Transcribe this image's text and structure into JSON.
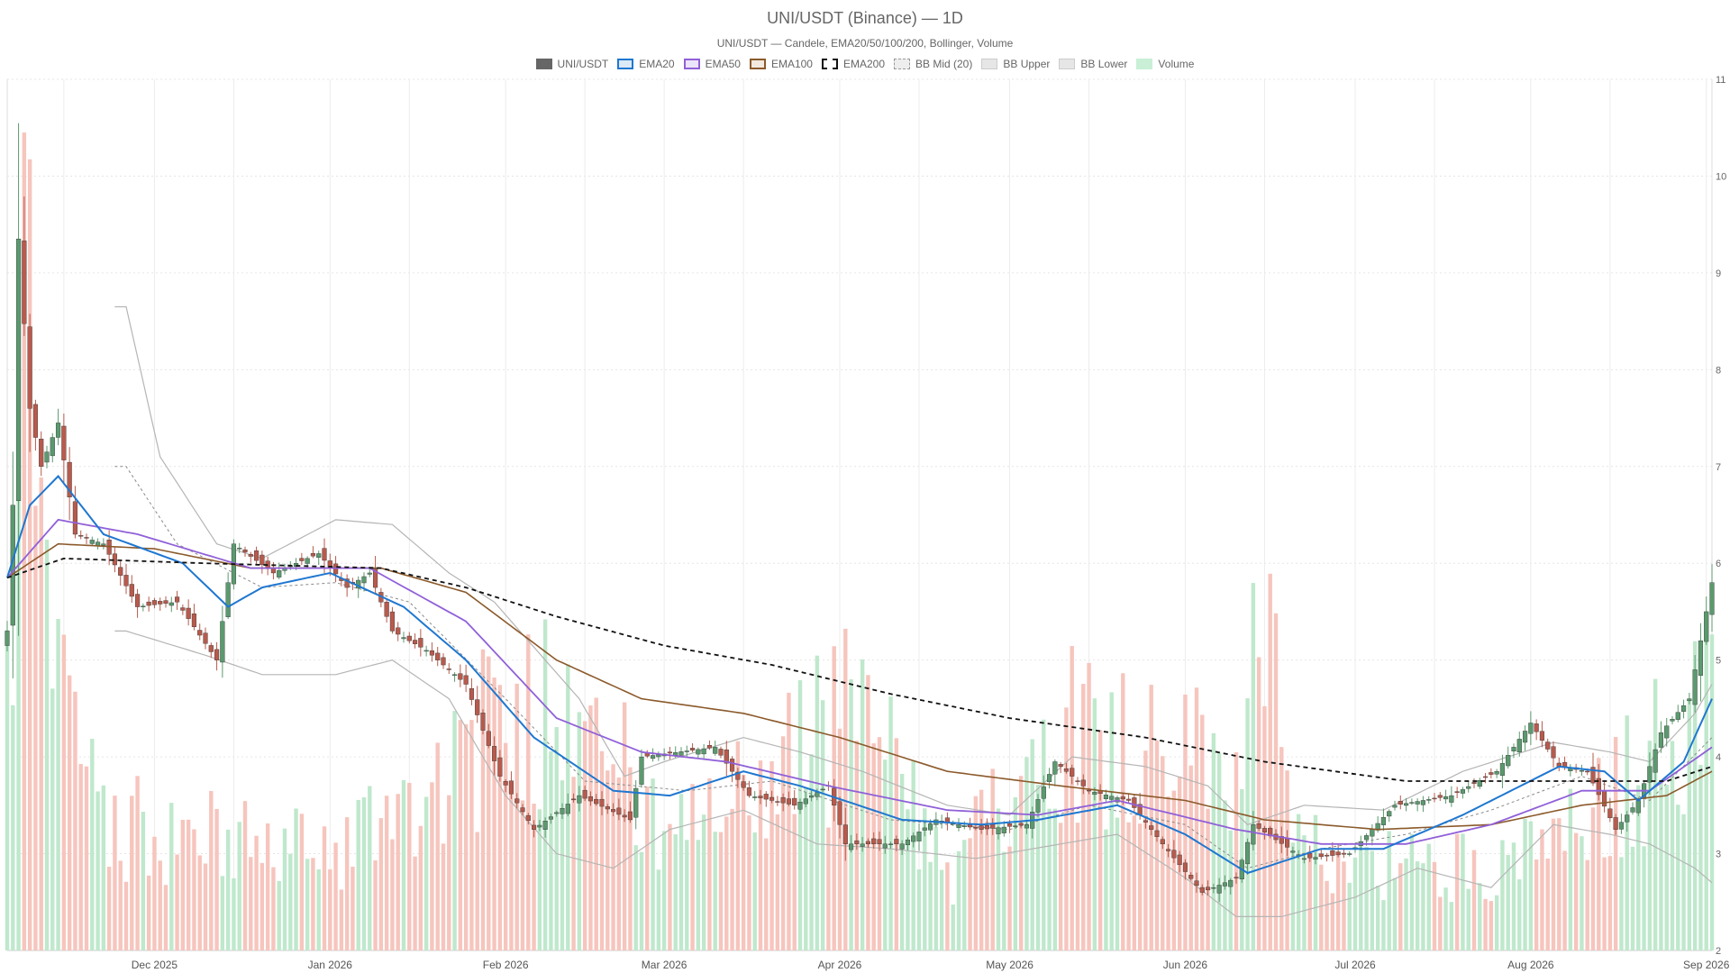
{
  "chart_data": {
    "type": "candlestick",
    "title": "UNI/USDT (Binance) — 1D",
    "subtitle": "UNI/USDT — Candele, EMA20/50/100/200, Bollinger, Volume",
    "xlabel": "",
    "ylabel": "",
    "ylim": [
      2,
      11
    ],
    "y_ticks": [
      2,
      3,
      4,
      5,
      6,
      7,
      8,
      9,
      10,
      11
    ],
    "x_ticks": [
      "Dec 2025",
      "Jan 2026",
      "Feb 2026",
      "Mar 2026",
      "Apr 2026",
      "May 2026",
      "Jun 2026",
      "Jul 2026",
      "Aug 2026",
      "Sep 2026"
    ],
    "x_range": [
      "2025-11-05",
      "2026-09-02"
    ],
    "grid": true,
    "legend_position": "top-center",
    "colors": {
      "up": "#5a9a6e",
      "down": "#b85a4c",
      "volume_up": "#bfe8cc",
      "volume_down": "#f6c5bd",
      "ema20": "#1f77d0",
      "ema50": "#9060d8",
      "ema100": "#8b5a2b",
      "ema200": "#111111",
      "bollinger": "#b5b5b5"
    },
    "legend": [
      {
        "name": "UNI/USDT",
        "icon": "candle-swatch"
      },
      {
        "name": "EMA20",
        "icon": "ema20-swatch"
      },
      {
        "name": "EMA50",
        "icon": "ema50-swatch"
      },
      {
        "name": "EMA100",
        "icon": "ema100-swatch"
      },
      {
        "name": "EMA200",
        "icon": "ema200-swatch"
      },
      {
        "name": "BB Mid (20)",
        "icon": "bb-mid-swatch"
      },
      {
        "name": "BB Upper",
        "icon": "bb-upper-swatch"
      },
      {
        "name": "BB Lower",
        "icon": "bb-lower-swatch"
      },
      {
        "name": "Volume",
        "icon": "volume-swatch"
      }
    ],
    "price_keypoints": [
      [
        "2025-11-05",
        5.3
      ],
      [
        "2025-11-06",
        6.6
      ],
      [
        "2025-11-07",
        9.35
      ],
      [
        "2025-11-09",
        7.6
      ],
      [
        "2025-11-11",
        7.0
      ],
      [
        "2025-11-14",
        7.45
      ],
      [
        "2025-11-17",
        6.3
      ],
      [
        "2025-11-22",
        6.2
      ],
      [
        "2025-11-28",
        5.55
      ],
      [
        "2025-12-05",
        5.6
      ],
      [
        "2025-12-12",
        5.0
      ],
      [
        "2025-12-15",
        6.2
      ],
      [
        "2025-12-22",
        5.9
      ],
      [
        "2025-12-30",
        6.1
      ],
      [
        "2026-01-04",
        5.75
      ],
      [
        "2026-01-08",
        5.9
      ],
      [
        "2026-01-12",
        5.3
      ],
      [
        "2026-01-18",
        5.1
      ],
      [
        "2026-01-25",
        4.75
      ],
      [
        "2026-01-31",
        3.8
      ],
      [
        "2026-02-06",
        3.25
      ],
      [
        "2026-02-14",
        3.6
      ],
      [
        "2026-02-23",
        3.35
      ],
      [
        "2026-02-25",
        4.0
      ],
      [
        "2026-03-10",
        4.1
      ],
      [
        "2026-03-16",
        3.6
      ],
      [
        "2026-03-24",
        3.5
      ],
      [
        "2026-03-30",
        3.7
      ],
      [
        "2026-04-02",
        3.1
      ],
      [
        "2026-04-12",
        3.1
      ],
      [
        "2026-04-18",
        3.35
      ],
      [
        "2026-04-26",
        3.25
      ],
      [
        "2026-05-04",
        3.3
      ],
      [
        "2026-05-09",
        3.95
      ],
      [
        "2026-05-15",
        3.65
      ],
      [
        "2026-05-22",
        3.55
      ],
      [
        "2026-05-28",
        3.1
      ],
      [
        "2026-06-04",
        2.6
      ],
      [
        "2026-06-10",
        2.75
      ],
      [
        "2026-06-13",
        3.3
      ],
      [
        "2026-06-22",
        2.95
      ],
      [
        "2026-06-30",
        3.0
      ],
      [
        "2026-07-08",
        3.5
      ],
      [
        "2026-07-18",
        3.6
      ],
      [
        "2026-07-26",
        3.85
      ],
      [
        "2026-08-01",
        4.35
      ],
      [
        "2026-08-06",
        3.9
      ],
      [
        "2026-08-11",
        3.85
      ],
      [
        "2026-08-16",
        3.25
      ],
      [
        "2026-08-20",
        3.55
      ],
      [
        "2026-08-24",
        4.25
      ],
      [
        "2026-08-29",
        4.6
      ],
      [
        "2026-09-02",
        5.8
      ]
    ],
    "ema20_keypoints": [
      [
        "2025-11-05",
        5.85
      ],
      [
        "2025-11-09",
        6.6
      ],
      [
        "2025-11-14",
        6.9
      ],
      [
        "2025-11-22",
        6.3
      ],
      [
        "2025-12-06",
        6.0
      ],
      [
        "2025-12-14",
        5.55
      ],
      [
        "2025-12-20",
        5.75
      ],
      [
        "2026-01-01",
        5.9
      ],
      [
        "2026-01-14",
        5.55
      ],
      [
        "2026-01-25",
        5.0
      ],
      [
        "2026-02-06",
        4.2
      ],
      [
        "2026-02-20",
        3.65
      ],
      [
        "2026-03-02",
        3.6
      ],
      [
        "2026-03-15",
        3.85
      ],
      [
        "2026-03-25",
        3.7
      ],
      [
        "2026-04-12",
        3.35
      ],
      [
        "2026-04-26",
        3.3
      ],
      [
        "2026-05-06",
        3.35
      ],
      [
        "2026-05-20",
        3.5
      ],
      [
        "2026-06-01",
        3.2
      ],
      [
        "2026-06-12",
        2.8
      ],
      [
        "2026-06-25",
        3.05
      ],
      [
        "2026-07-06",
        3.05
      ],
      [
        "2026-07-20",
        3.4
      ],
      [
        "2026-08-06",
        3.9
      ],
      [
        "2026-08-14",
        3.85
      ],
      [
        "2026-08-20",
        3.55
      ],
      [
        "2026-08-28",
        3.95
      ],
      [
        "2026-09-02",
        4.6
      ]
    ],
    "ema50_keypoints": [
      [
        "2025-11-05",
        5.85
      ],
      [
        "2025-11-14",
        6.45
      ],
      [
        "2025-11-28",
        6.3
      ],
      [
        "2025-12-18",
        5.95
      ],
      [
        "2026-01-08",
        5.95
      ],
      [
        "2026-01-25",
        5.4
      ],
      [
        "2026-02-10",
        4.4
      ],
      [
        "2026-02-25",
        4.05
      ],
      [
        "2026-03-12",
        3.95
      ],
      [
        "2026-03-30",
        3.7
      ],
      [
        "2026-04-20",
        3.45
      ],
      [
        "2026-05-06",
        3.4
      ],
      [
        "2026-05-20",
        3.55
      ],
      [
        "2026-06-10",
        3.25
      ],
      [
        "2026-06-25",
        3.1
      ],
      [
        "2026-07-10",
        3.1
      ],
      [
        "2026-07-25",
        3.3
      ],
      [
        "2026-08-10",
        3.65
      ],
      [
        "2026-08-22",
        3.65
      ],
      [
        "2026-09-02",
        4.1
      ]
    ],
    "ema100_keypoints": [
      [
        "2025-11-05",
        5.85
      ],
      [
        "2025-11-14",
        6.2
      ],
      [
        "2025-12-01",
        6.15
      ],
      [
        "2025-12-18",
        5.95
      ],
      [
        "2026-01-10",
        5.95
      ],
      [
        "2026-01-25",
        5.7
      ],
      [
        "2026-02-10",
        5.0
      ],
      [
        "2026-02-25",
        4.6
      ],
      [
        "2026-03-15",
        4.45
      ],
      [
        "2026-04-01",
        4.2
      ],
      [
        "2026-04-20",
        3.85
      ],
      [
        "2026-05-10",
        3.7
      ],
      [
        "2026-06-01",
        3.55
      ],
      [
        "2026-06-15",
        3.35
      ],
      [
        "2026-07-05",
        3.25
      ],
      [
        "2026-07-25",
        3.3
      ],
      [
        "2026-08-10",
        3.5
      ],
      [
        "2026-08-25",
        3.6
      ],
      [
        "2026-09-02",
        3.85
      ]
    ],
    "ema200_keypoints": [
      [
        "2025-11-05",
        5.85
      ],
      [
        "2025-11-15",
        6.05
      ],
      [
        "2025-12-10",
        6.0
      ],
      [
        "2026-01-10",
        5.95
      ],
      [
        "2026-01-25",
        5.75
      ],
      [
        "2026-02-10",
        5.45
      ],
      [
        "2026-03-01",
        5.15
      ],
      [
        "2026-03-20",
        4.95
      ],
      [
        "2026-04-10",
        4.65
      ],
      [
        "2026-05-01",
        4.4
      ],
      [
        "2026-05-25",
        4.2
      ],
      [
        "2026-06-15",
        3.95
      ],
      [
        "2026-07-10",
        3.75
      ],
      [
        "2026-08-05",
        3.75
      ],
      [
        "2026-08-25",
        3.75
      ],
      [
        "2026-09-02",
        3.9
      ]
    ],
    "bb_upper_keypoints": [
      [
        "2025-11-24",
        8.65
      ],
      [
        "2025-11-26",
        8.65
      ],
      [
        "2025-12-02",
        7.1
      ],
      [
        "2025-12-12",
        6.2
      ],
      [
        "2025-12-20",
        6.05
      ],
      [
        "2026-01-02",
        6.45
      ],
      [
        "2026-01-12",
        6.4
      ],
      [
        "2026-01-22",
        5.9
      ],
      [
        "2026-01-30",
        5.6
      ],
      [
        "2026-02-08",
        5.0
      ],
      [
        "2026-02-14",
        4.6
      ],
      [
        "2026-02-22",
        3.8
      ],
      [
        "2026-03-01",
        3.95
      ],
      [
        "2026-03-15",
        4.2
      ],
      [
        "2026-03-25",
        4.05
      ],
      [
        "2026-04-05",
        3.85
      ],
      [
        "2026-04-20",
        3.5
      ],
      [
        "2026-05-01",
        3.4
      ],
      [
        "2026-05-12",
        4.0
      ],
      [
        "2026-05-25",
        3.9
      ],
      [
        "2026-06-05",
        3.7
      ],
      [
        "2026-06-12",
        3.3
      ],
      [
        "2026-06-22",
        3.5
      ],
      [
        "2026-07-06",
        3.45
      ],
      [
        "2026-07-20",
        3.85
      ],
      [
        "2026-08-05",
        4.15
      ],
      [
        "2026-08-15",
        4.05
      ],
      [
        "2026-08-22",
        3.95
      ],
      [
        "2026-08-30",
        4.45
      ],
      [
        "2026-09-02",
        4.75
      ]
    ],
    "bb_lower_keypoints": [
      [
        "2025-11-24",
        5.3
      ],
      [
        "2025-11-26",
        5.3
      ],
      [
        "2025-12-10",
        5.05
      ],
      [
        "2025-12-20",
        4.85
      ],
      [
        "2026-01-02",
        4.85
      ],
      [
        "2026-01-12",
        5.0
      ],
      [
        "2026-01-22",
        4.6
      ],
      [
        "2026-02-01",
        3.6
      ],
      [
        "2026-02-10",
        3.0
      ],
      [
        "2026-02-20",
        2.85
      ],
      [
        "2026-03-02",
        3.25
      ],
      [
        "2026-03-15",
        3.45
      ],
      [
        "2026-03-28",
        3.1
      ],
      [
        "2026-04-10",
        3.05
      ],
      [
        "2026-04-25",
        2.95
      ],
      [
        "2026-05-05",
        3.05
      ],
      [
        "2026-05-20",
        3.2
      ],
      [
        "2026-06-01",
        2.75
      ],
      [
        "2026-06-10",
        2.35
      ],
      [
        "2026-06-18",
        2.35
      ],
      [
        "2026-07-01",
        2.55
      ],
      [
        "2026-07-12",
        2.85
      ],
      [
        "2026-07-25",
        2.65
      ],
      [
        "2026-08-05",
        3.3
      ],
      [
        "2026-08-15",
        3.2
      ],
      [
        "2026-08-22",
        3.1
      ],
      [
        "2026-08-30",
        2.85
      ],
      [
        "2026-09-02",
        2.7
      ]
    ],
    "bb_mid_keypoints": [
      [
        "2025-11-24",
        7.0
      ],
      [
        "2025-11-26",
        7.0
      ],
      [
        "2025-12-05",
        6.2
      ],
      [
        "2025-12-20",
        5.75
      ],
      [
        "2026-01-02",
        5.8
      ],
      [
        "2026-01-15",
        5.6
      ],
      [
        "2026-02-01",
        4.6
      ],
      [
        "2026-02-15",
        3.75
      ],
      [
        "2026-03-05",
        3.65
      ],
      [
        "2026-03-20",
        3.75
      ],
      [
        "2026-04-10",
        3.35
      ],
      [
        "2026-05-01",
        3.25
      ],
      [
        "2026-05-15",
        3.5
      ],
      [
        "2026-06-01",
        3.3
      ],
      [
        "2026-06-12",
        2.85
      ],
      [
        "2026-06-25",
        3.05
      ],
      [
        "2026-07-10",
        3.2
      ],
      [
        "2026-07-25",
        3.45
      ],
      [
        "2026-08-10",
        3.8
      ],
      [
        "2026-08-22",
        3.55
      ],
      [
        "2026-09-02",
        4.2
      ]
    ],
    "volume_scale_price_max": 10.45,
    "volume_keypoints": [
      [
        "2025-11-05",
        0.35
      ],
      [
        "2025-11-07",
        0.5
      ],
      [
        "2025-11-08",
        1.0
      ],
      [
        "2025-11-10",
        0.45
      ],
      [
        "2025-11-15",
        0.3
      ],
      [
        "2025-11-25",
        0.15
      ],
      [
        "2026-01-01",
        0.12
      ],
      [
        "2026-02-06",
        0.3
      ],
      [
        "2026-02-13",
        0.35
      ],
      [
        "2026-03-01",
        0.12
      ],
      [
        "2026-04-05",
        0.3
      ],
      [
        "2026-04-20",
        0.08
      ],
      [
        "2026-05-09",
        0.28
      ],
      [
        "2026-06-10",
        0.22
      ],
      [
        "2026-06-14",
        0.45
      ],
      [
        "2026-06-20",
        0.12
      ],
      [
        "2026-07-15",
        0.1
      ],
      [
        "2026-08-05",
        0.12
      ],
      [
        "2026-08-25",
        0.25
      ],
      [
        "2026-09-02",
        0.3
      ]
    ]
  }
}
